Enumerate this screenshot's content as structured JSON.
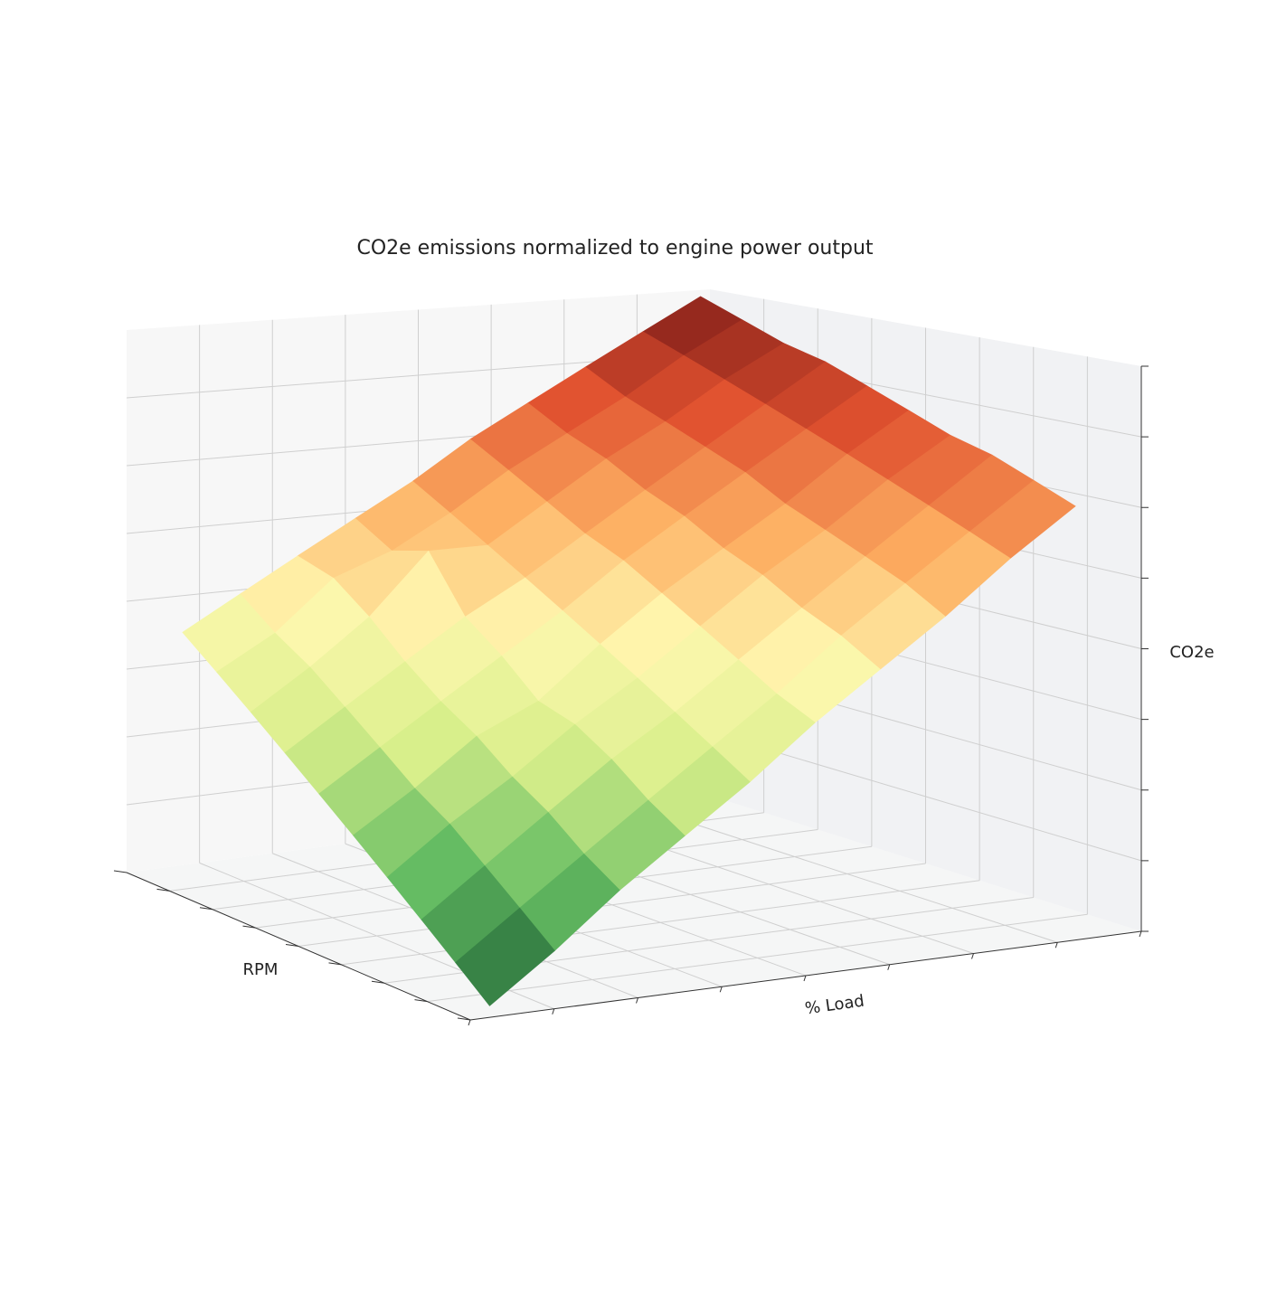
{
  "chart_data": {
    "type": "surface",
    "title": "CO2e emissions normalized to engine power output",
    "xlabel": "RPM",
    "ylabel": "% Load",
    "zlabel": "CO2e",
    "colors": [
      "#1a5e33",
      "#66bd63",
      "#d9ef8b",
      "#fff8b0",
      "#fdae61",
      "#e0512f",
      "#7a1a18"
    ],
    "z": [
      [
        0.0,
        0.08,
        0.17,
        0.25,
        0.33,
        0.42,
        0.5,
        0.58,
        0.67,
        0.75
      ],
      [
        0.05,
        0.13,
        0.21,
        0.29,
        0.37,
        0.45,
        0.54,
        0.62,
        0.7,
        0.78
      ],
      [
        0.1,
        0.18,
        0.26,
        0.34,
        0.41,
        0.49,
        0.57,
        0.65,
        0.73,
        0.81
      ],
      [
        0.15,
        0.23,
        0.3,
        0.38,
        0.45,
        0.53,
        0.61,
        0.68,
        0.76,
        0.83
      ],
      [
        0.2,
        0.27,
        0.35,
        0.4,
        0.49,
        0.57,
        0.64,
        0.71,
        0.79,
        0.86
      ],
      [
        0.25,
        0.32,
        0.39,
        0.46,
        0.53,
        0.61,
        0.68,
        0.75,
        0.82,
        0.89
      ],
      [
        0.3,
        0.37,
        0.44,
        0.51,
        0.57,
        0.64,
        0.71,
        0.78,
        0.85,
        0.92
      ],
      [
        0.35,
        0.42,
        0.5,
        0.61,
        0.61,
        0.68,
        0.75,
        0.81,
        0.88,
        0.94
      ],
      [
        0.4,
        0.46,
        0.55,
        0.59,
        0.65,
        0.72,
        0.78,
        0.84,
        0.91,
        0.97
      ],
      [
        0.45,
        0.51,
        0.57,
        0.63,
        0.69,
        0.76,
        0.82,
        0.88,
        0.94,
        1.0
      ]
    ]
  }
}
